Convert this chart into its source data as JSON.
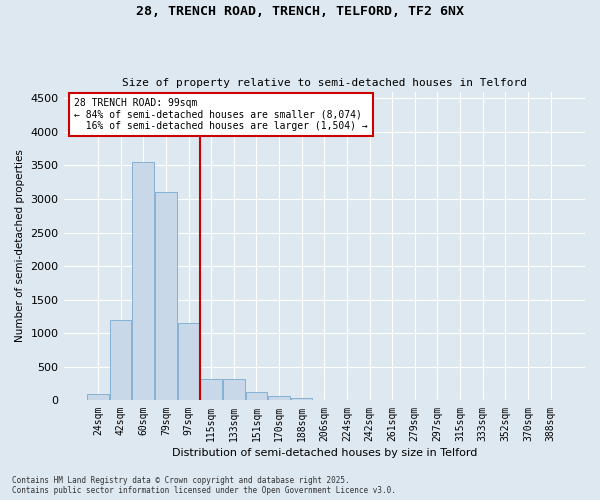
{
  "title_line1": "28, TRENCH ROAD, TRENCH, TELFORD, TF2 6NX",
  "title_line2": "Size of property relative to semi-detached houses in Telford",
  "xlabel": "Distribution of semi-detached houses by size in Telford",
  "ylabel": "Number of semi-detached properties",
  "categories": [
    "24sqm",
    "42sqm",
    "60sqm",
    "79sqm",
    "97sqm",
    "115sqm",
    "133sqm",
    "151sqm",
    "170sqm",
    "188sqm",
    "206sqm",
    "224sqm",
    "242sqm",
    "261sqm",
    "279sqm",
    "297sqm",
    "315sqm",
    "333sqm",
    "352sqm",
    "370sqm",
    "388sqm"
  ],
  "values": [
    100,
    1200,
    3550,
    3100,
    1150,
    320,
    320,
    120,
    60,
    30,
    5,
    0,
    0,
    0,
    0,
    0,
    0,
    0,
    0,
    0,
    0
  ],
  "bar_color": "#c8d8e8",
  "bar_edge_color": "#7aaad0",
  "subject_label": "28 TRENCH ROAD: 99sqm",
  "pct_smaller": "84% of semi-detached houses are smaller (8,074)",
  "pct_larger": "16% of semi-detached houses are larger (1,504)",
  "ylim": [
    0,
    4600
  ],
  "yticks": [
    0,
    500,
    1000,
    1500,
    2000,
    2500,
    3000,
    3500,
    4000,
    4500
  ],
  "annotation_box_color": "#cc0000",
  "vline_color": "#cc0000",
  "vline_x": 4.5,
  "footer_line1": "Contains HM Land Registry data © Crown copyright and database right 2025.",
  "footer_line2": "Contains public sector information licensed under the Open Government Licence v3.0.",
  "plot_bg_color": "#dde8f0",
  "fig_bg_color": "#dde8f0"
}
